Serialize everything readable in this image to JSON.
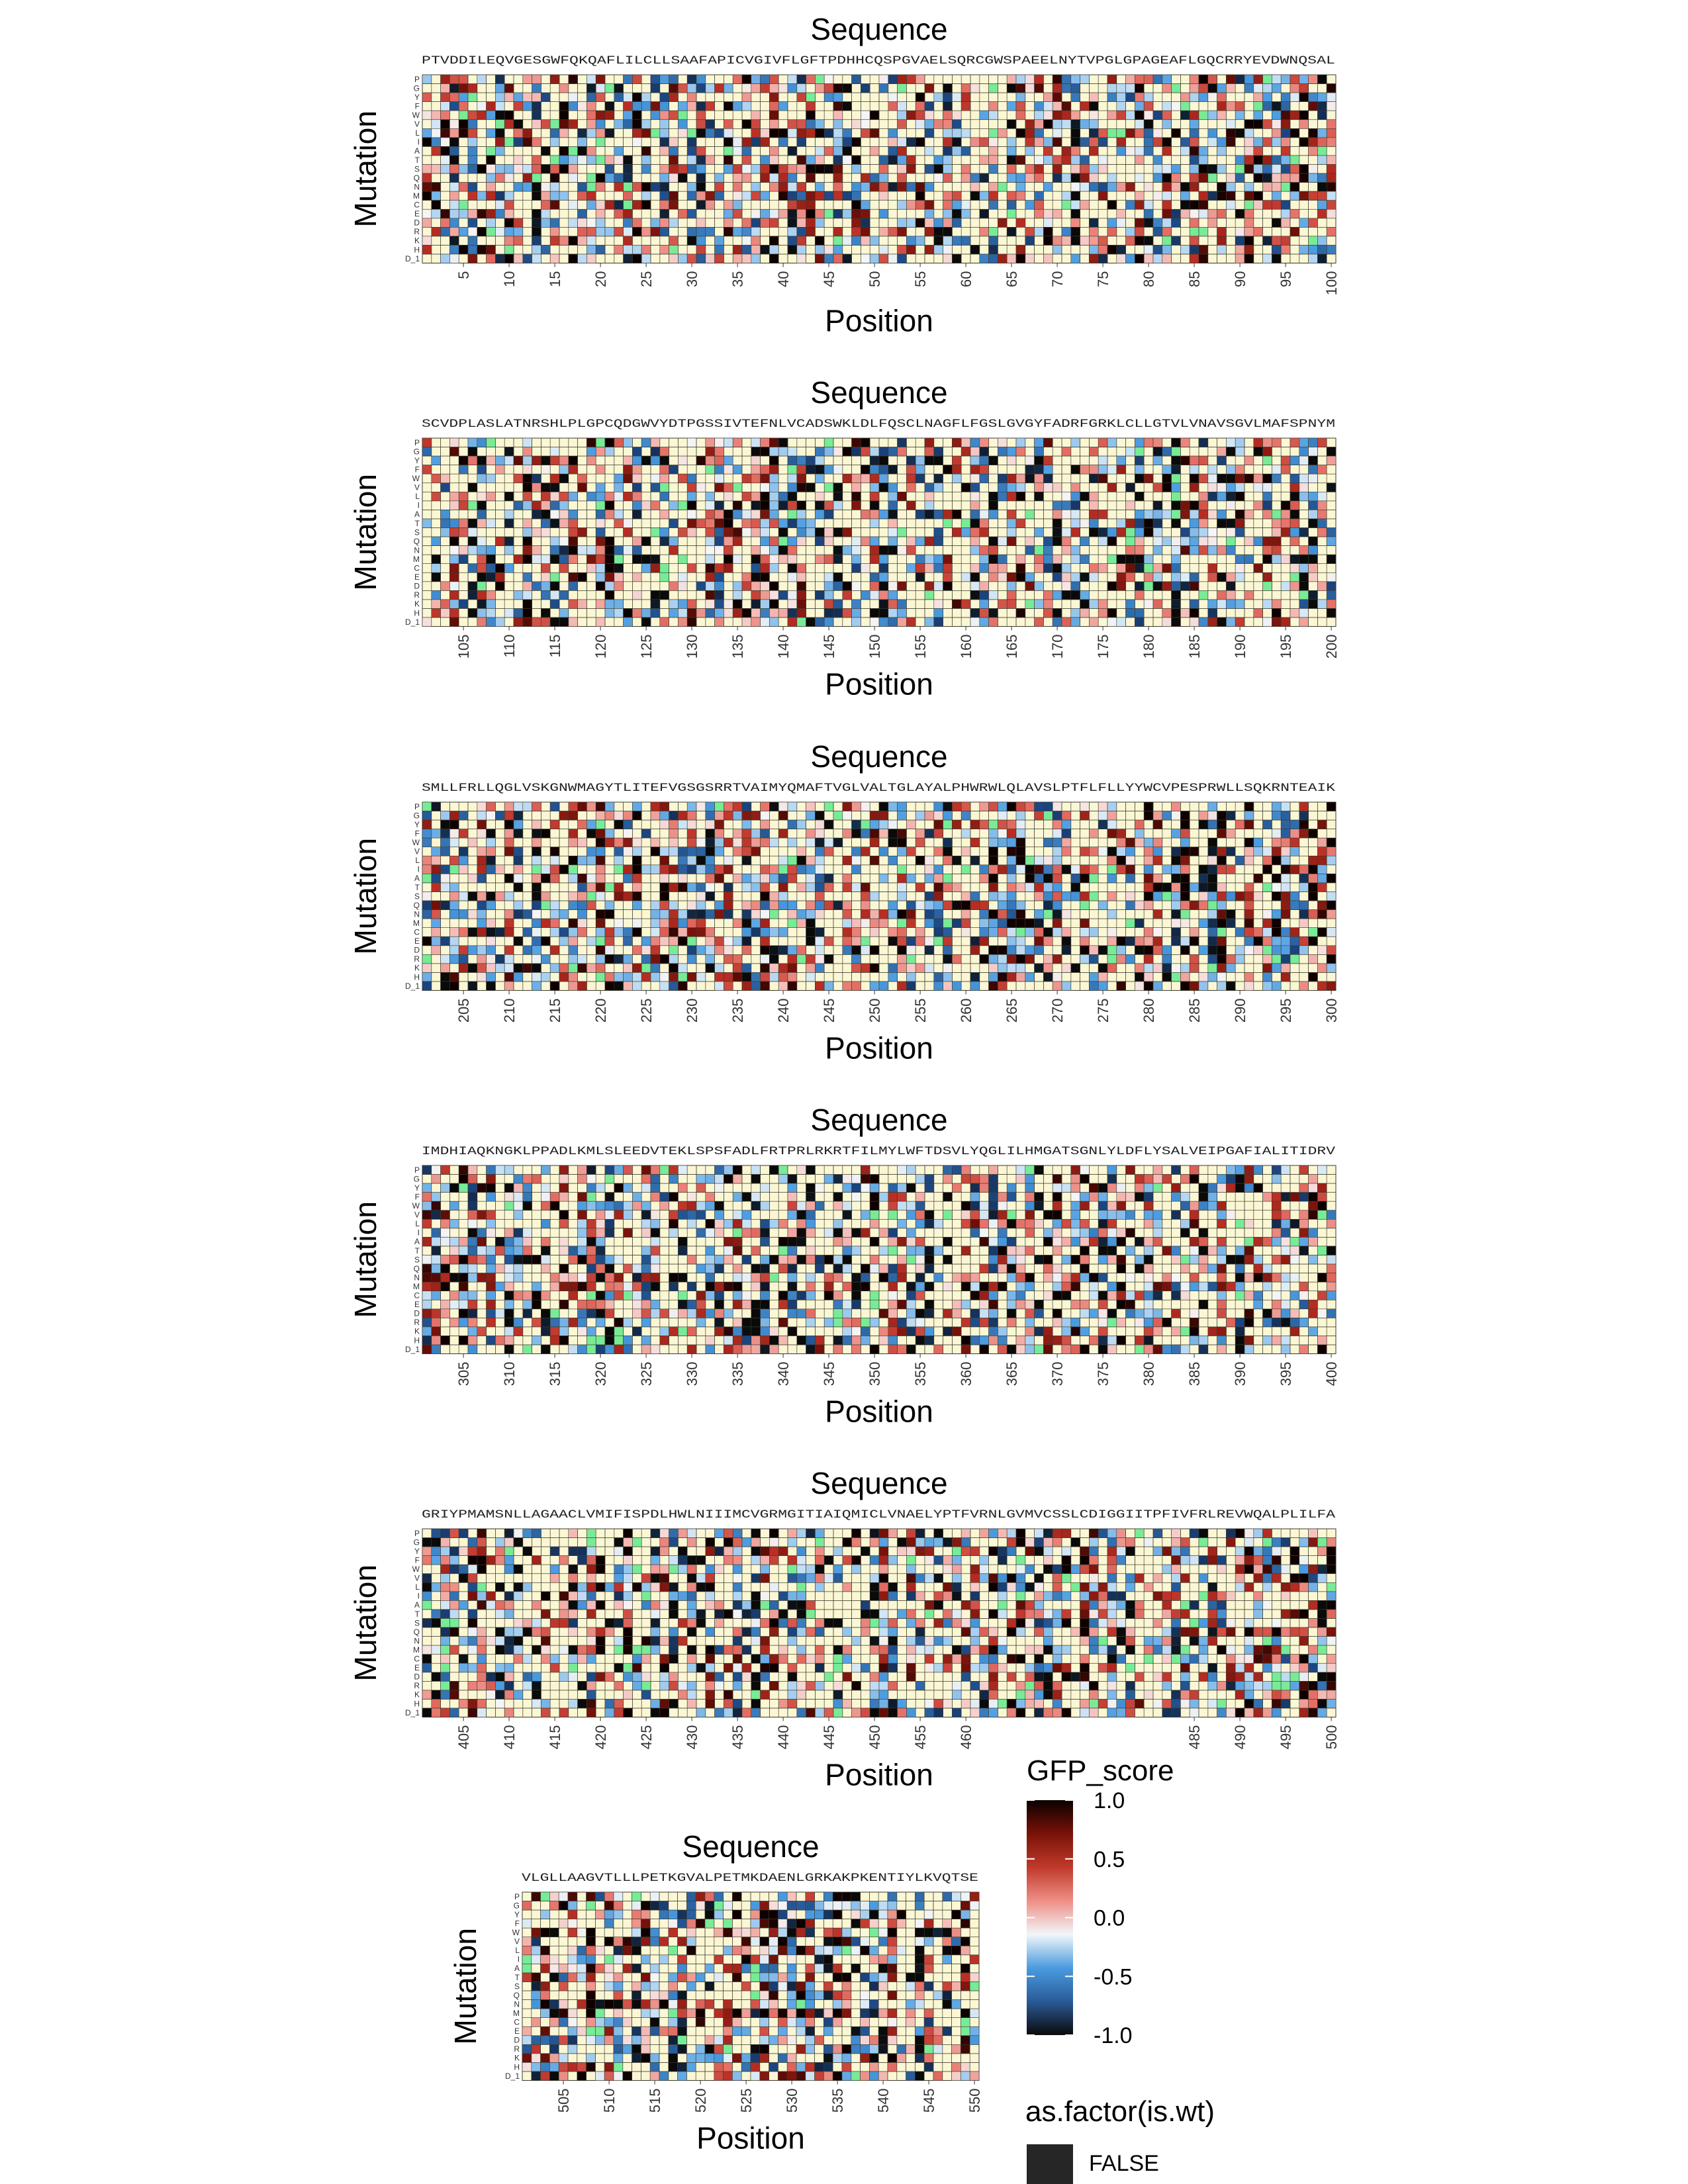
{
  "chart_data": {
    "type": "heatmap",
    "title": "Sequence",
    "xlabel": "Position",
    "ylabel": "Mutation",
    "mutation_labels": [
      "P",
      "G",
      "Y",
      "F",
      "W",
      "V",
      "L",
      "I",
      "A",
      "T",
      "S",
      "Q",
      "N",
      "M",
      "C",
      "E",
      "D",
      "R",
      "K",
      "H",
      "D_1"
    ],
    "panels": [
      {
        "sequence": "PTVDDILEQVGESGWFQKQAFLILCLLSAAFAPICVGIVFLGFTPDHHCQSPGVAELSQRCGWSPAEELNYTVPGLGPAGEAFLGQCRRYEVDWNQSAL",
        "start": 1,
        "end": 100,
        "xticks": [
          5,
          10,
          15,
          20,
          25,
          30,
          35,
          40,
          45,
          50,
          55,
          60,
          65,
          70,
          75,
          80,
          85,
          90,
          95,
          100
        ]
      },
      {
        "sequence": "SCVDPLASLATNRSHLPLGPCQDGWVYDTPGSSIVTEFNLVCADSWKLDLFQSCLNAGFLFGSLGVGYFADRFGRKLCLLGTVLVNAVSGVLMAFSPNYM",
        "start": 101,
        "end": 200,
        "xticks": [
          105,
          110,
          115,
          120,
          125,
          130,
          135,
          140,
          145,
          150,
          155,
          160,
          165,
          170,
          175,
          180,
          185,
          190,
          195,
          200
        ]
      },
      {
        "sequence": "SMLLFRLLQGLVSKGNWMAGYTLITEFVGSGSRRTVAIMYQMAFTVGLVALTGLAYALPHWRWLQLAVSLPTFLFLLYYWCVPESPRWLLSQKRNTEAIK",
        "start": 201,
        "end": 300,
        "xticks": [
          205,
          210,
          215,
          220,
          225,
          230,
          235,
          240,
          245,
          250,
          255,
          260,
          265,
          270,
          275,
          280,
          285,
          290,
          295,
          300
        ]
      },
      {
        "sequence": "IMDHIAQKNGKLPPADLKMLSLEEDVTEKLSPSFADLFRTPRLRKRTFILMYLWFTDSVLYQGLILHMGATSGNLYLDFLYSALVEIPGAFIALITIDRV",
        "start": 301,
        "end": 400,
        "xticks": [
          305,
          310,
          315,
          320,
          325,
          330,
          335,
          340,
          345,
          350,
          355,
          360,
          365,
          370,
          375,
          380,
          385,
          390,
          395,
          400
        ]
      },
      {
        "sequence": "GRIYPMAMSNLLAGAACLVMIFISPDLHWLNIIIMCVGRMGITIAIQMICLVNAELYPTFVRNLGVMVCSSLCDIGGIITPFIVFRLREVWQALPLILFA",
        "start": 401,
        "end": 500,
        "xticks": [
          405,
          410,
          415,
          420,
          425,
          430,
          435,
          440,
          445,
          450,
          455,
          460,
          485,
          490,
          495,
          500
        ]
      },
      {
        "sequence": "VLGLLAAGVTLLLPETKGVALPETMKDAENLGRKAKPKENTIYLKVQTSE",
        "start": 501,
        "end": 550,
        "xticks": [
          505,
          510,
          515,
          520,
          525,
          530,
          535,
          540,
          545,
          550
        ]
      }
    ],
    "colorbar": {
      "title": "GFP_score",
      "range": [
        -1.0,
        1.0
      ],
      "tick_labels": [
        "1.0",
        "0.5",
        "0.0",
        "-0.5",
        "-1.0"
      ],
      "colors": [
        "#0a0a0a",
        "#2a5a98",
        "#4a9be0",
        "#f2f6fa",
        "#ee8f86",
        "#c0392b",
        "#7a1208",
        "#0a0000"
      ]
    },
    "legend": {
      "title": "as.factor(is.wt)",
      "entries": [
        {
          "label": "FALSE",
          "color": "#262626"
        }
      ]
    },
    "missing_color": "#fbf7d4",
    "grid_color": "#3b3b2e"
  }
}
